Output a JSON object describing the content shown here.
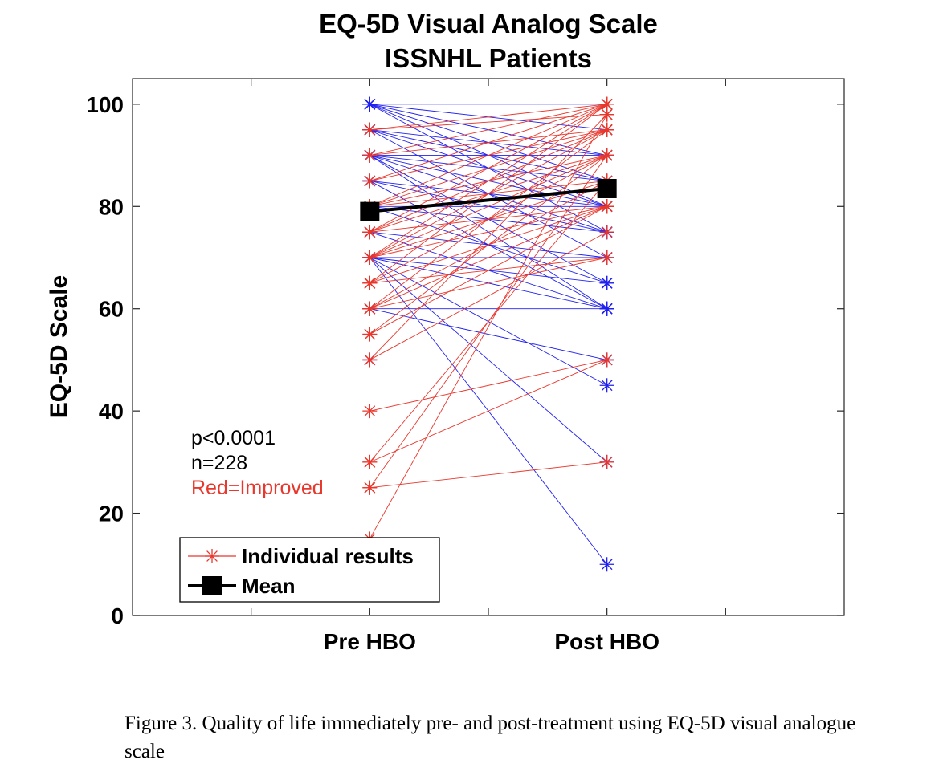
{
  "chart_data": {
    "type": "line",
    "title": "EQ-5D Visual Analog Scale",
    "subtitle": "ISSNHL Patients",
    "ylabel": "EQ-5D Scale",
    "xlabel": "",
    "categories": [
      "Pre HBO",
      "Post HBO"
    ],
    "xlim": [
      0,
      3
    ],
    "ylim": [
      0,
      105
    ],
    "yticks": [
      0,
      20,
      40,
      60,
      80,
      100
    ],
    "xtick_positions": [
      0.5,
      1,
      1.5,
      2,
      2.5
    ],
    "colors": {
      "improved": "#e8372c",
      "not_improved": "#2020f0",
      "mean": "#000000"
    },
    "mean": {
      "name": "Mean",
      "values": [
        79,
        83.5
      ]
    },
    "individual": {
      "name": "Individual results",
      "pairs": [
        [
          100,
          100
        ],
        [
          100,
          95
        ],
        [
          100,
          90
        ],
        [
          100,
          85
        ],
        [
          100,
          80
        ],
        [
          100,
          75
        ],
        [
          95,
          100
        ],
        [
          95,
          98
        ],
        [
          95,
          90
        ],
        [
          95,
          85
        ],
        [
          95,
          80
        ],
        [
          95,
          70
        ],
        [
          90,
          100
        ],
        [
          90,
          95
        ],
        [
          90,
          90
        ],
        [
          90,
          85
        ],
        [
          90,
          80
        ],
        [
          90,
          75
        ],
        [
          90,
          65
        ],
        [
          90,
          60
        ],
        [
          85,
          100
        ],
        [
          85,
          95
        ],
        [
          85,
          80
        ],
        [
          85,
          75
        ],
        [
          85,
          60
        ],
        [
          80,
          100
        ],
        [
          80,
          95
        ],
        [
          80,
          90
        ],
        [
          80,
          85
        ],
        [
          80,
          80
        ],
        [
          80,
          75
        ],
        [
          80,
          65
        ],
        [
          75,
          100
        ],
        [
          75,
          95
        ],
        [
          75,
          90
        ],
        [
          75,
          80
        ],
        [
          75,
          70
        ],
        [
          75,
          60
        ],
        [
          70,
          100
        ],
        [
          70,
          95
        ],
        [
          70,
          90
        ],
        [
          70,
          85
        ],
        [
          70,
          80
        ],
        [
          70,
          70
        ],
        [
          70,
          65
        ],
        [
          70,
          60
        ],
        [
          70,
          45
        ],
        [
          70,
          30
        ],
        [
          70,
          10
        ],
        [
          65,
          100
        ],
        [
          65,
          90
        ],
        [
          65,
          80
        ],
        [
          65,
          70
        ],
        [
          60,
          95
        ],
        [
          60,
          85
        ],
        [
          60,
          80
        ],
        [
          60,
          70
        ],
        [
          60,
          60
        ],
        [
          60,
          50
        ],
        [
          55,
          90
        ],
        [
          55,
          80
        ],
        [
          50,
          98
        ],
        [
          50,
          75
        ],
        [
          50,
          50
        ],
        [
          40,
          50
        ],
        [
          30,
          85
        ],
        [
          30,
          50
        ],
        [
          25,
          90
        ],
        [
          25,
          30
        ],
        [
          15,
          98
        ]
      ]
    },
    "annotations": [
      "p<0.0001",
      "n=228",
      "Red=Improved"
    ],
    "legend": {
      "placement": "bottom-left",
      "entries": [
        "Individual results",
        "Mean"
      ]
    }
  },
  "caption": "Figure 3. Quality of life immediately pre- and post-treatment using EQ-5D visual analogue scale"
}
